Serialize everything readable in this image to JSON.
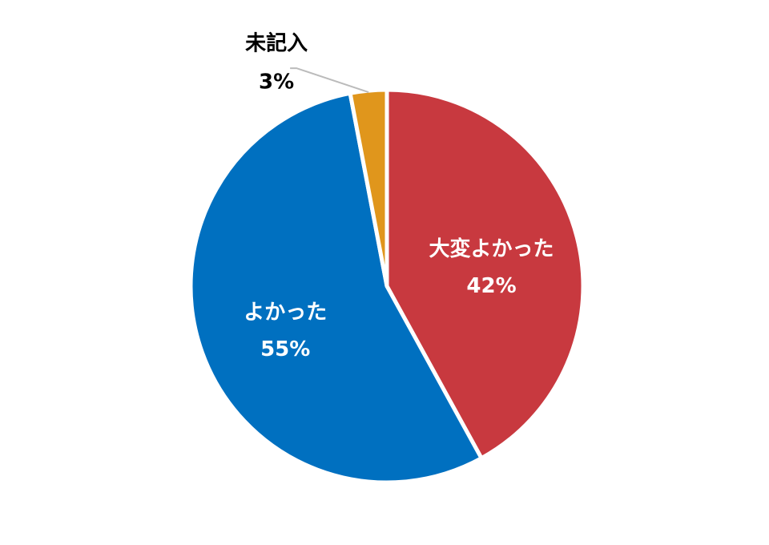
{
  "chart_data": {
    "type": "pie",
    "categories": [
      "大変よかった",
      "よかった",
      "未記入"
    ],
    "values": [
      42,
      55,
      3
    ],
    "value_labels": [
      "42%",
      "55%",
      "3%"
    ],
    "colors": [
      "#c8393f",
      "#0070c0",
      "#e0961c"
    ]
  }
}
